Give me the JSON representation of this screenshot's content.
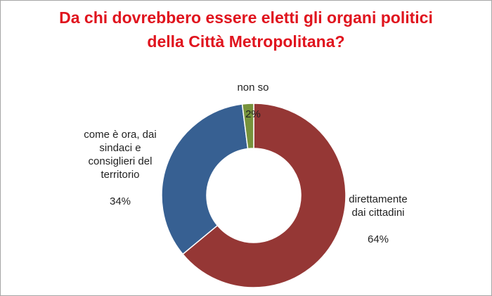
{
  "chart_data": {
    "type": "pie",
    "title": "Da chi dovrebbero essere eletti gli organi politici della Città Metropolitana?",
    "title_lines": [
      "Da chi dovrebbero essere eletti gli organi politici",
      "della Città Metropolitana?"
    ],
    "slices": [
      {
        "label": "direttamente\ndai cittadini",
        "value": 64,
        "value_text": "64%",
        "color": "#953735"
      },
      {
        "label": "come è ora, dai\nsindaci e\nconsiglieri del\nterritorio",
        "value": 34,
        "value_text": "34%",
        "color": "#376092"
      },
      {
        "label": "non so",
        "value": 2,
        "value_text": "2%",
        "color": "#77933c"
      }
    ],
    "style": "donut",
    "legend": "none"
  }
}
